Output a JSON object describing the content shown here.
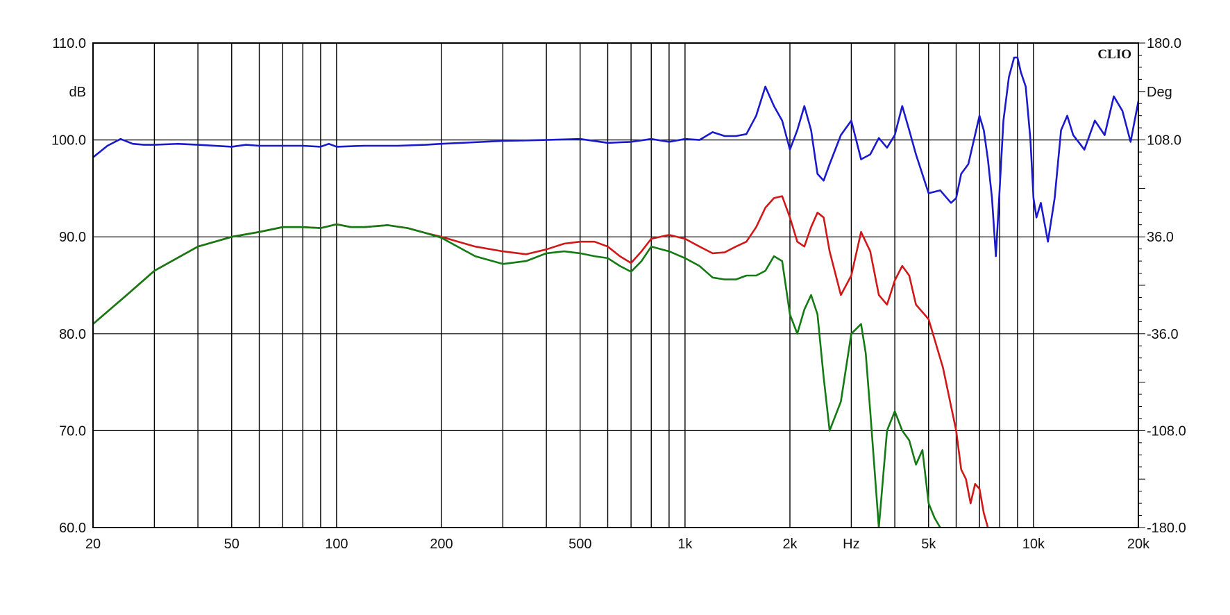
{
  "chart_data": {
    "type": "line",
    "title": "",
    "brand": "CLIO",
    "xlabel": "Hz",
    "ylabel_left": "dB",
    "ylabel_right": "Deg",
    "x_scale": "log",
    "xlim": [
      20,
      20000
    ],
    "ylim_left": [
      60,
      110
    ],
    "ylim_right": [
      -180,
      180
    ],
    "grid": true,
    "x_ticks": [
      {
        "v": 20,
        "label": "20"
      },
      {
        "v": 50,
        "label": "50"
      },
      {
        "v": 100,
        "label": "100"
      },
      {
        "v": 200,
        "label": "200"
      },
      {
        "v": 500,
        "label": "500"
      },
      {
        "v": 1000,
        "label": "1k"
      },
      {
        "v": 2000,
        "label": "2k"
      },
      {
        "v": 5000,
        "label": "5k"
      },
      {
        "v": 10000,
        "label": "10k"
      },
      {
        "v": 20000,
        "label": "20k"
      }
    ],
    "x_unit_label_at": 3000,
    "y_left_ticks": [
      {
        "v": 110,
        "label": "110.0"
      },
      {
        "v": 100,
        "label": "100.0"
      },
      {
        "v": 90,
        "label": "90.0"
      },
      {
        "v": 80,
        "label": "80.0"
      },
      {
        "v": 70,
        "label": "70.0"
      },
      {
        "v": 60,
        "label": "60.0"
      }
    ],
    "y_right_ticks": [
      {
        "v": 180,
        "label": "180.0"
      },
      {
        "v": 108,
        "label": "108.0"
      },
      {
        "v": 36,
        "label": "36.0"
      },
      {
        "v": -36,
        "label": "-36.0"
      },
      {
        "v": -108,
        "label": "-108.0"
      },
      {
        "v": -180,
        "label": "-180.0"
      }
    ],
    "colors": {
      "blue": "#1a1acc",
      "red": "#d01818",
      "green": "#147a14",
      "grid": "#000000"
    },
    "series": [
      {
        "color_key": "blue",
        "x": [
          20,
          22,
          24,
          26,
          28,
          30,
          35,
          40,
          50,
          55,
          60,
          70,
          80,
          90,
          95,
          100,
          120,
          150,
          180,
          200,
          300,
          400,
          500,
          600,
          700,
          800,
          900,
          1000,
          1100,
          1200,
          1300,
          1400,
          1500,
          1600,
          1700,
          1800,
          1900,
          2000,
          2100,
          2200,
          2300,
          2400,
          2500,
          2600,
          2800,
          3000,
          3200,
          3400,
          3600,
          3800,
          4000,
          4200,
          4400,
          4600,
          5000,
          5400,
          5800,
          6000,
          6200,
          6500,
          7000,
          7200,
          7400,
          7600,
          7800,
          8000,
          8200,
          8500,
          8800,
          9000,
          9200,
          9500,
          9800,
          10000,
          10200,
          10500,
          11000,
          11500,
          12000,
          12500,
          13000,
          14000,
          15000,
          16000,
          17000,
          18000,
          19000,
          20000
        ],
        "y": [
          98.2,
          99.4,
          100.1,
          99.6,
          99.5,
          99.5,
          99.6,
          99.5,
          99.3,
          99.5,
          99.4,
          99.4,
          99.4,
          99.3,
          99.6,
          99.3,
          99.4,
          99.4,
          99.5,
          99.6,
          99.9,
          100.0,
          100.1,
          99.7,
          99.8,
          100.1,
          99.8,
          100.1,
          100.0,
          100.8,
          100.4,
          100.4,
          100.6,
          102.5,
          105.5,
          103.5,
          102.0,
          99.0,
          101.0,
          103.5,
          101.0,
          96.5,
          95.8,
          97.5,
          100.5,
          102.0,
          98.0,
          98.5,
          100.2,
          99.2,
          100.5,
          103.5,
          101.0,
          98.5,
          94.5,
          94.8,
          93.5,
          94.0,
          96.5,
          97.5,
          102.5,
          101.0,
          98.0,
          94.0,
          88.0,
          95.0,
          102.0,
          106.5,
          108.5,
          108.5,
          107.0,
          105.5,
          100.0,
          94.0,
          92.0,
          93.5,
          89.5,
          94.0,
          101.0,
          102.5,
          100.5,
          99.0,
          102.0,
          100.5,
          104.5,
          103.0,
          99.8,
          104.0
        ]
      },
      {
        "color_key": "red",
        "x": [
          20,
          25,
          30,
          40,
          50,
          60,
          70,
          80,
          90,
          100,
          110,
          120,
          140,
          160,
          180,
          200,
          250,
          300,
          350,
          400,
          450,
          500,
          550,
          600,
          650,
          700,
          750,
          800,
          900,
          1000,
          1100,
          1200,
          1300,
          1400,
          1500,
          1600,
          1700,
          1800,
          1900,
          2000,
          2100,
          2200,
          2300,
          2400,
          2500,
          2600,
          2800,
          3000,
          3200,
          3400,
          3600,
          3800,
          4000,
          4200,
          4400,
          4600,
          5000,
          5500,
          6000,
          6200,
          6400,
          6600,
          6800,
          7000,
          7200,
          7400
        ],
        "y": [
          81.0,
          84.0,
          86.5,
          89.0,
          90.0,
          90.5,
          91.0,
          91.0,
          90.9,
          91.3,
          91.0,
          91.0,
          91.2,
          90.9,
          90.4,
          90.0,
          89.0,
          88.5,
          88.2,
          88.7,
          89.3,
          89.5,
          89.5,
          89.0,
          88.0,
          87.3,
          88.5,
          89.8,
          90.2,
          89.8,
          89.0,
          88.3,
          88.4,
          89.0,
          89.5,
          91.0,
          93.0,
          94.0,
          94.2,
          92.0,
          89.5,
          89.0,
          91.0,
          92.5,
          92.0,
          88.5,
          84.0,
          86.0,
          90.5,
          88.5,
          84.0,
          83.0,
          85.5,
          87.0,
          86.0,
          83.0,
          81.5,
          76.5,
          70.0,
          66.0,
          65.0,
          62.5,
          64.5,
          64.0,
          61.5,
          60.0
        ]
      },
      {
        "color_key": "green",
        "x": [
          20,
          25,
          30,
          40,
          50,
          60,
          70,
          80,
          90,
          100,
          110,
          120,
          140,
          160,
          180,
          200,
          250,
          300,
          350,
          400,
          450,
          500,
          550,
          600,
          650,
          700,
          750,
          800,
          900,
          1000,
          1100,
          1200,
          1300,
          1400,
          1500,
          1600,
          1700,
          1800,
          1900,
          2000,
          2100,
          2200,
          2300,
          2400,
          2500,
          2600,
          2800,
          3000,
          3200,
          3300,
          3400,
          3600,
          3800,
          4000,
          4200,
          4400,
          4600,
          4800,
          5000,
          5200,
          5400
        ],
        "y": [
          81.0,
          84.0,
          86.5,
          89.0,
          90.0,
          90.5,
          91.0,
          91.0,
          90.9,
          91.3,
          91.0,
          91.0,
          91.2,
          90.9,
          90.4,
          89.9,
          88.0,
          87.2,
          87.5,
          88.3,
          88.5,
          88.3,
          88.0,
          87.8,
          87.0,
          86.4,
          87.5,
          89.0,
          88.5,
          87.8,
          87.0,
          85.8,
          85.6,
          85.6,
          86.0,
          86.0,
          86.5,
          88.0,
          87.5,
          82.0,
          80.0,
          82.5,
          84.0,
          82.0,
          75.5,
          70.0,
          73.0,
          80.0,
          81.0,
          78.0,
          72.0,
          60.0,
          70.0,
          72.0,
          70.0,
          69.0,
          66.5,
          68.0,
          62.5,
          61.0,
          60.0
        ]
      }
    ]
  }
}
